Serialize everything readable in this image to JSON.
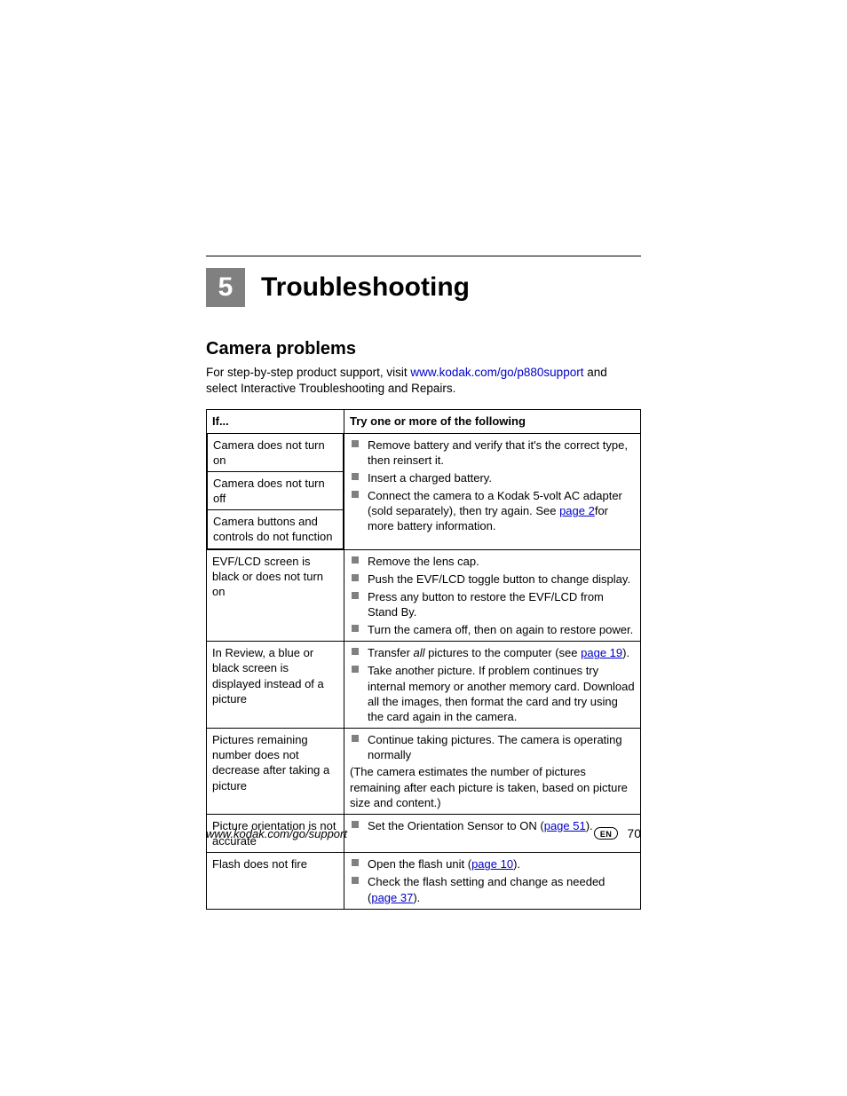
{
  "chapter": {
    "number": "5",
    "title": "Troubleshooting"
  },
  "section": {
    "title": "Camera problems"
  },
  "intro": {
    "pre": " For step-by-step product support, visit ",
    "link": "www.kodak.com/go/p880support",
    "post": " and select Interactive Troubleshooting and Repairs."
  },
  "table": {
    "headers": {
      "left": "If...",
      "right": "Try one or more of the following"
    },
    "group1": {
      "left": {
        "r1": "Camera does not turn on",
        "r2": "Camera does not turn off",
        "r3": "Camera buttons and controls do not function"
      },
      "right": {
        "b1": "Remove battery and verify that it's the correct type, then reinsert it.",
        "b2": "Insert a charged battery.",
        "b3_pre": "Connect the camera to a Kodak 5-volt AC adapter (sold separately), then try again. See ",
        "b3_link": "page 2",
        "b3_post": "for more battery information."
      }
    },
    "row2": {
      "left": "EVF/LCD screen is black or does not turn on",
      "b1": "Remove the lens cap.",
      "b2": "Push the EVF/LCD toggle button to change display.",
      "b3": "Press any button to restore the EVF/LCD from Stand By.",
      "b4": "Turn the camera off, then on again to restore power."
    },
    "row3": {
      "left": "In Review, a blue or black screen is displayed instead of a picture",
      "b1_pre": "Transfer ",
      "b1_ital": "all",
      "b1_mid": " pictures to the computer (see ",
      "b1_link": "page 19",
      "b1_post": ").",
      "b2": "Take another picture. If problem continues try internal memory or another memory card. Download all the images, then format the card and try using the card again in the camera."
    },
    "row4": {
      "left": "Pictures remaining number does not decrease after taking a picture",
      "b1": "Continue taking pictures. The camera is operating normally",
      "note": "(The camera estimates the number of pictures remaining after each picture is taken, based on picture size and content.)"
    },
    "row5": {
      "left": "Picture orientation is not accurate",
      "b1_pre": "Set the Orientation Sensor to ON (",
      "b1_link": "page 51",
      "b1_post": ")."
    },
    "row6": {
      "left": "Flash does not fire",
      "b1_pre": "Open the flash unit (",
      "b1_link": "page 10",
      "b1_post": ").",
      "b2_pre": "Check the flash setting and change as needed (",
      "b2_link": "page 37",
      "b2_post": ")."
    }
  },
  "footer": {
    "url": "www.kodak.com/go/support",
    "lang": "EN",
    "page": "70"
  },
  "colors": {
    "link": "#0000c8",
    "bullet": "#808080",
    "chapter_box": "#808080",
    "text": "#000000",
    "bg": "#ffffff"
  }
}
